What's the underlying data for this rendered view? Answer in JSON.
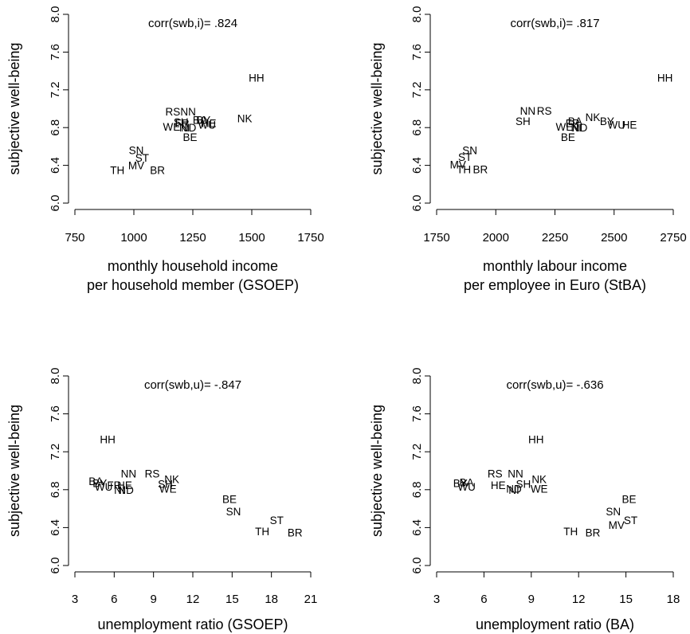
{
  "chart_data": [
    {
      "type": "scatter",
      "annotation": "corr(swb,i)= .824",
      "xlabel": [
        "monthly household income",
        "per household member (GSOEP)"
      ],
      "ylabel": "subjective well-being",
      "xlim": [
        750,
        1750
      ],
      "ylim": [
        6.0,
        8.0
      ],
      "xticks": [
        "750",
        "1000",
        "1250",
        "1500",
        "1750"
      ],
      "yticks": [
        "6.0",
        "6.4",
        "6.8",
        "7.2",
        "7.6",
        "8.0"
      ],
      "points": [
        {
          "label": "HH",
          "x": 1520,
          "y": 7.33
        },
        {
          "label": "NK",
          "x": 1470,
          "y": 6.9
        },
        {
          "label": "RS",
          "x": 1165,
          "y": 6.97
        },
        {
          "label": "NN",
          "x": 1230,
          "y": 6.97
        },
        {
          "label": "BY",
          "x": 1295,
          "y": 6.88
        },
        {
          "label": "BA",
          "x": 1280,
          "y": 6.88
        },
        {
          "label": "HE",
          "x": 1318,
          "y": 6.85
        },
        {
          "label": "WU",
          "x": 1310,
          "y": 6.83
        },
        {
          "label": "SH",
          "x": 1200,
          "y": 6.86
        },
        {
          "label": "FR",
          "x": 1205,
          "y": 6.85
        },
        {
          "label": "WE",
          "x": 1160,
          "y": 6.81
        },
        {
          "label": "NI",
          "x": 1215,
          "y": 6.8
        },
        {
          "label": "ND",
          "x": 1232,
          "y": 6.8
        },
        {
          "label": "BE",
          "x": 1238,
          "y": 6.7
        },
        {
          "label": "SN",
          "x": 1010,
          "y": 6.56
        },
        {
          "label": "ST",
          "x": 1035,
          "y": 6.48
        },
        {
          "label": "MV",
          "x": 1010,
          "y": 6.4
        },
        {
          "label": "TH",
          "x": 930,
          "y": 6.35
        },
        {
          "label": "BR",
          "x": 1100,
          "y": 6.35
        }
      ]
    },
    {
      "type": "scatter",
      "annotation": "corr(swb,i)= .817",
      "xlabel": [
        "monthly labour income",
        "per employee in Euro (StBA)"
      ],
      "ylabel": "subjective well-being",
      "xlim": [
        1750,
        2750
      ],
      "ylim": [
        6.0,
        8.0
      ],
      "xticks": [
        "1750",
        "2000",
        "2250",
        "2500",
        "2750"
      ],
      "yticks": [
        "6.0",
        "6.4",
        "6.8",
        "7.2",
        "7.6",
        "8.0"
      ],
      "points": [
        {
          "label": "HH",
          "x": 2715,
          "y": 7.33
        },
        {
          "label": "NN",
          "x": 2135,
          "y": 6.98
        },
        {
          "label": "RS",
          "x": 2205,
          "y": 6.98
        },
        {
          "label": "SH",
          "x": 2115,
          "y": 6.87
        },
        {
          "label": "NK",
          "x": 2410,
          "y": 6.91
        },
        {
          "label": "BY",
          "x": 2470,
          "y": 6.87
        },
        {
          "label": "BA",
          "x": 2335,
          "y": 6.87
        },
        {
          "label": "FR",
          "x": 2325,
          "y": 6.85
        },
        {
          "label": "HE",
          "x": 2565,
          "y": 6.83
        },
        {
          "label": "WU",
          "x": 2510,
          "y": 6.83
        },
        {
          "label": "WE",
          "x": 2290,
          "y": 6.81
        },
        {
          "label": "NI",
          "x": 2340,
          "y": 6.8
        },
        {
          "label": "ND",
          "x": 2355,
          "y": 6.8
        },
        {
          "label": "BE",
          "x": 2305,
          "y": 6.7
        },
        {
          "label": "SN",
          "x": 1890,
          "y": 6.56
        },
        {
          "label": "ST",
          "x": 1870,
          "y": 6.49
        },
        {
          "label": "MV",
          "x": 1840,
          "y": 6.41
        },
        {
          "label": "TH",
          "x": 1865,
          "y": 6.36
        },
        {
          "label": "BR",
          "x": 1935,
          "y": 6.36
        }
      ]
    },
    {
      "type": "scatter",
      "annotation": "corr(swb,u)= -.847",
      "xlabel": [
        "unemployment ratio (GSOEP)"
      ],
      "ylabel": "subjective well-being",
      "xlim": [
        3,
        21
      ],
      "ylim": [
        6.0,
        8.0
      ],
      "xticks": [
        "3",
        "6",
        "9",
        "12",
        "15",
        "18",
        "21"
      ],
      "yticks": [
        "6.0",
        "6.4",
        "6.8",
        "7.2",
        "7.6",
        "8.0"
      ],
      "points": [
        {
          "label": "HH",
          "x": 5.5,
          "y": 7.33
        },
        {
          "label": "NN",
          "x": 7.1,
          "y": 6.97
        },
        {
          "label": "RS",
          "x": 8.9,
          "y": 6.97
        },
        {
          "label": "NK",
          "x": 10.4,
          "y": 6.91
        },
        {
          "label": "SH",
          "x": 9.9,
          "y": 6.86
        },
        {
          "label": "WE",
          "x": 10.1,
          "y": 6.81
        },
        {
          "label": "BA",
          "x": 4.6,
          "y": 6.89
        },
        {
          "label": "BY",
          "x": 4.9,
          "y": 6.87
        },
        {
          "label": "FR",
          "x": 6.0,
          "y": 6.85
        },
        {
          "label": "HE",
          "x": 6.8,
          "y": 6.85
        },
        {
          "label": "WU",
          "x": 5.2,
          "y": 6.83
        },
        {
          "label": "NI",
          "x": 6.4,
          "y": 6.8
        },
        {
          "label": "ND",
          "x": 6.9,
          "y": 6.8
        },
        {
          "label": "BE",
          "x": 14.8,
          "y": 6.7
        },
        {
          "label": "SN",
          "x": 15.1,
          "y": 6.57
        },
        {
          "label": "ST",
          "x": 18.4,
          "y": 6.48
        },
        {
          "label": "TH",
          "x": 17.3,
          "y": 6.36
        },
        {
          "label": "BR",
          "x": 19.8,
          "y": 6.35
        }
      ]
    },
    {
      "type": "scatter",
      "annotation": "corr(swb,u)= -.636",
      "xlabel": [
        "unemployment ratio (BA)"
      ],
      "ylabel": "subjective well-being",
      "xlim": [
        3,
        18
      ],
      "ylim": [
        6.0,
        8.0
      ],
      "xticks": [
        "3",
        "6",
        "9",
        "12",
        "15",
        "18"
      ],
      "yticks": [
        "6.0",
        "6.4",
        "6.8",
        "7.2",
        "7.6",
        "8.0"
      ],
      "points": [
        {
          "label": "HH",
          "x": 9.3,
          "y": 7.33
        },
        {
          "label": "NN",
          "x": 8.0,
          "y": 6.97
        },
        {
          "label": "RS",
          "x": 6.7,
          "y": 6.97
        },
        {
          "label": "NK",
          "x": 9.5,
          "y": 6.91
        },
        {
          "label": "SH",
          "x": 8.5,
          "y": 6.86
        },
        {
          "label": "WE",
          "x": 9.5,
          "y": 6.81
        },
        {
          "label": "BY",
          "x": 4.5,
          "y": 6.87
        },
        {
          "label": "BA",
          "x": 4.9,
          "y": 6.88
        },
        {
          "label": "HE",
          "x": 6.9,
          "y": 6.85
        },
        {
          "label": "WU",
          "x": 4.9,
          "y": 6.83
        },
        {
          "label": "NI",
          "x": 7.9,
          "y": 6.8
        },
        {
          "label": "ND",
          "x": 7.9,
          "y": 6.81
        },
        {
          "label": "BE",
          "x": 15.2,
          "y": 6.7
        },
        {
          "label": "SN",
          "x": 14.2,
          "y": 6.57
        },
        {
          "label": "ST",
          "x": 15.3,
          "y": 6.48
        },
        {
          "label": "MV",
          "x": 14.4,
          "y": 6.43
        },
        {
          "label": "TH",
          "x": 11.5,
          "y": 6.36
        },
        {
          "label": "BR",
          "x": 12.9,
          "y": 6.35
        }
      ]
    }
  ]
}
